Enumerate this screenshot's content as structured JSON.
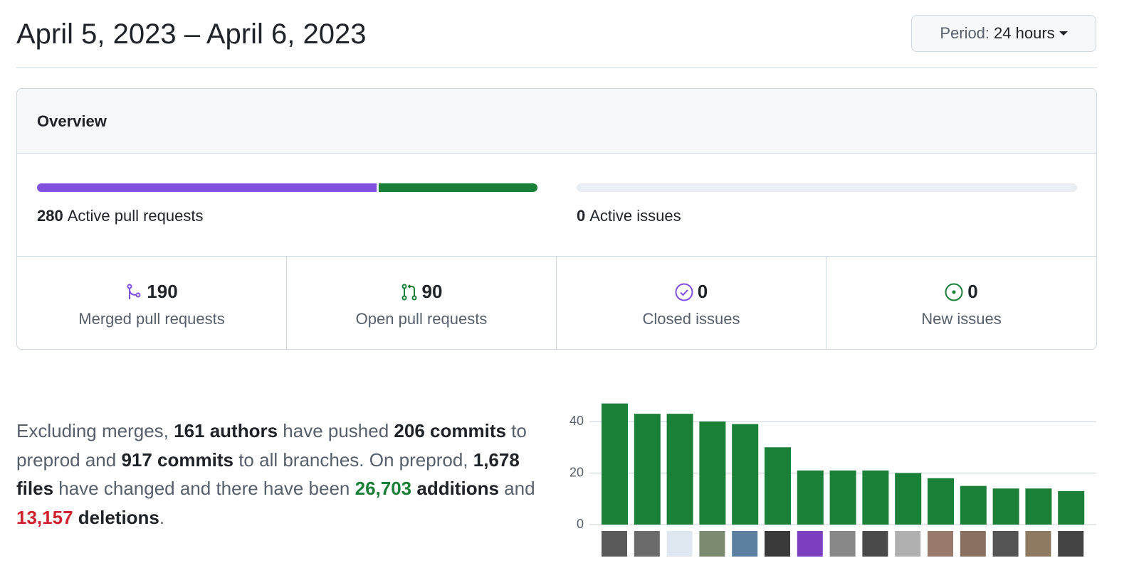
{
  "header": {
    "title": "April 5, 2023 – April 6, 2023",
    "period_label": "Period:",
    "period_value": "24 hours"
  },
  "overview": {
    "title": "Overview",
    "pull_requests": {
      "count": 280,
      "label": "Active pull requests"
    },
    "issues": {
      "count": 0,
      "label": "Active issues"
    },
    "stats": [
      {
        "value": 190,
        "label": "Merged pull requests",
        "color": "#8250df"
      },
      {
        "value": 90,
        "label": "Open pull requests",
        "color": "#1a7f37"
      },
      {
        "value": 0,
        "label": "Closed issues",
        "color": "#8250df"
      },
      {
        "value": 0,
        "label": "New issues",
        "color": "#1a7f37"
      }
    ]
  },
  "summary": [
    {
      "text": "Excluding merges, ",
      "style": "plain"
    },
    {
      "text": "161 authors",
      "style": "strong"
    },
    {
      "text": " have pushed ",
      "style": "plain"
    },
    {
      "text": "206 commits",
      "style": "strong"
    },
    {
      "text": " to preprod and ",
      "style": "plain"
    },
    {
      "text": "917 commits",
      "style": "strong"
    },
    {
      "text": " to all branches. On preprod, ",
      "style": "plain"
    },
    {
      "text": "1,678 files",
      "style": "strong"
    },
    {
      "text": " have changed and there have been ",
      "style": "plain"
    },
    {
      "text": "26,703",
      "style": "additions"
    },
    {
      "text": " additions",
      "style": "strong"
    },
    {
      "text": " and ",
      "style": "plain"
    },
    {
      "text": "13,157",
      "style": "deletions"
    },
    {
      "text": " deletions",
      "style": "strong"
    },
    {
      "text": ".",
      "style": "plain"
    }
  ],
  "chart_data": {
    "type": "bar",
    "values": [
      47,
      43,
      43,
      40,
      39,
      30,
      21,
      21,
      21,
      20,
      18,
      15,
      14,
      14,
      13
    ],
    "color": "#1a7f37",
    "ylim": [
      0,
      50
    ],
    "yticks": [
      0,
      20,
      40
    ],
    "grid": true
  }
}
